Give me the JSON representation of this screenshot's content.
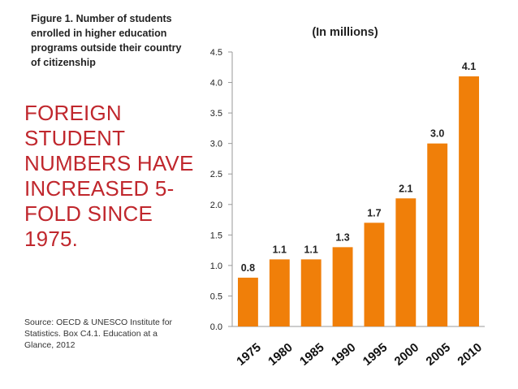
{
  "figure_caption": "Figure 1. Number of students enrolled in higher education programs outside their country of citizenship",
  "headline": "FOREIGN STUDENT NUMBERS HAVE INCREASED 5-FOLD SINCE 1975.",
  "source": "Source: OECD & UNESCO Institute for Statistics. Box C4.1. Education at a Glance, 2012",
  "colors": {
    "bar": "#f07f09",
    "headline": "#c0272d",
    "axis": "#999999"
  },
  "chart_data": {
    "type": "bar",
    "title": "(In millions)",
    "xlabel": "",
    "ylabel": "",
    "categories": [
      "1975",
      "1980",
      "1985",
      "1990",
      "1995",
      "2000",
      "2005",
      "2010"
    ],
    "values": [
      0.8,
      1.1,
      1.1,
      1.3,
      1.7,
      2.1,
      3.0,
      4.1
    ],
    "value_labels": [
      "0.8",
      "1.1",
      "1.1",
      "1.3",
      "1.7",
      "2.1",
      "3.0",
      "4.1"
    ],
    "ylim": [
      0,
      4.5
    ],
    "yticks": [
      "0.0",
      "0.5",
      "1.0",
      "1.5",
      "2.0",
      "2.5",
      "3.0",
      "3.5",
      "4.0",
      "4.5"
    ],
    "grid": false,
    "legend": "none"
  }
}
